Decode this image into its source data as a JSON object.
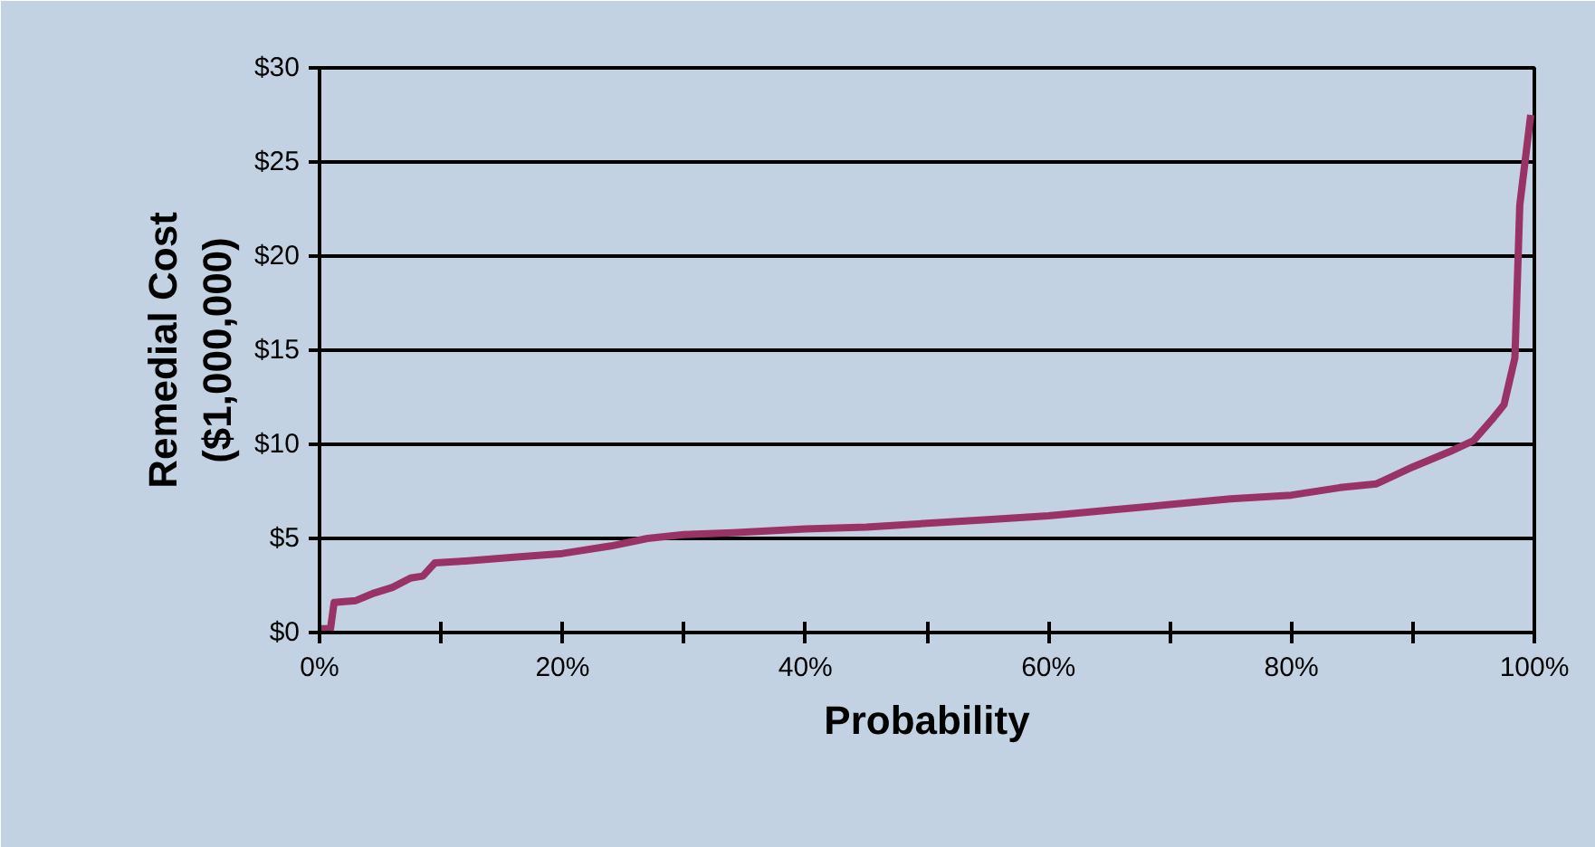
{
  "chart_data": {
    "type": "line",
    "xlabel": "Probability",
    "ylabel": "Remedial Cost\n($1,000,000)",
    "x": [
      0,
      0.9,
      1.2,
      3,
      4.5,
      6,
      7.5,
      8.5,
      9.5,
      12,
      16,
      20,
      24,
      27,
      30,
      34,
      40,
      45,
      50,
      55,
      60,
      65,
      70,
      75,
      80,
      84,
      87,
      90,
      93,
      95,
      96.5,
      97.5,
      98.4,
      98.8,
      99.7
    ],
    "series": [
      {
        "color": "#993366",
        "values": [
          0.2,
          0.2,
          1.6,
          1.7,
          2.1,
          2.4,
          2.9,
          3.0,
          3.7,
          3.8,
          4.0,
          4.2,
          4.6,
          5.0,
          5.2,
          5.3,
          5.5,
          5.6,
          5.8,
          6.0,
          6.2,
          6.5,
          6.8,
          7.1,
          7.3,
          7.7,
          7.9,
          8.8,
          9.6,
          10.2,
          11.3,
          12.1,
          14.6,
          22.7,
          27.5
        ]
      }
    ],
    "xlim": [
      0,
      100
    ],
    "ylim": [
      0,
      30
    ],
    "xticks": [
      {
        "value": 0,
        "label": "0%"
      },
      {
        "value": 10,
        "label": null
      },
      {
        "value": 20,
        "label": "20%"
      },
      {
        "value": 30,
        "label": null
      },
      {
        "value": 40,
        "label": "40%"
      },
      {
        "value": 50,
        "label": null
      },
      {
        "value": 60,
        "label": "60%"
      },
      {
        "value": 70,
        "label": null
      },
      {
        "value": 80,
        "label": "80%"
      },
      {
        "value": 90,
        "label": null
      },
      {
        "value": 100,
        "label": "100%"
      }
    ],
    "yticks": [
      {
        "value": 0,
        "label": "$0"
      },
      {
        "value": 5,
        "label": "$5"
      },
      {
        "value": 10,
        "label": "$10"
      },
      {
        "value": 15,
        "label": "$15"
      },
      {
        "value": 20,
        "label": "$20"
      },
      {
        "value": 25,
        "label": "$25"
      },
      {
        "value": 30,
        "label": "$30"
      }
    ],
    "grid": "y",
    "marker": "none",
    "line_style": "solid"
  }
}
